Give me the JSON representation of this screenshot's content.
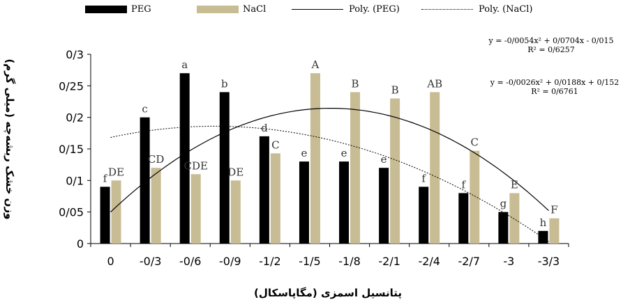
{
  "chart_data": {
    "type": "bar",
    "categories": [
      "0",
      "-0/3",
      "-0/6",
      "-0/9",
      "-1/2",
      "-1/5",
      "-1/8",
      "-2/1",
      "-2/4",
      "-2/7",
      "-3",
      "-3/3"
    ],
    "series": [
      {
        "name": "PEG",
        "color": "#000000",
        "values": [
          0.09,
          0.2,
          0.27,
          0.24,
          0.17,
          0.13,
          0.13,
          0.12,
          0.09,
          0.08,
          0.05,
          0.02
        ],
        "letters": [
          "f",
          "c",
          "a",
          "b",
          "d",
          "e",
          "e",
          "e",
          "f",
          "f",
          "g",
          "h"
        ]
      },
      {
        "name": "NaCl",
        "color": "#c8bc94",
        "values": [
          0.1,
          0.12,
          0.11,
          0.1,
          0.143,
          0.27,
          0.24,
          0.23,
          0.24,
          0.147,
          0.08,
          0.04
        ],
        "letters": [
          "DE",
          "CD",
          "CDE",
          "DE",
          "C",
          "A",
          "B",
          "B",
          "AB",
          "C",
          "E",
          "F"
        ]
      }
    ],
    "trendlines": [
      {
        "name": "Poly. (PEG)",
        "style": "solid",
        "equation": "y = -0/0054x² + 0/0704x - 0/015",
        "r2": "R² = 0/6257",
        "coefficients": [
          -0.0054,
          0.0704,
          -0.015
        ]
      },
      {
        "name": "Poly. (NaCl)",
        "style": "dotted",
        "equation": "y = -0/0026x² + 0/0188x + 0/152",
        "r2": "R² = 0/6761",
        "coefficients": [
          -0.0026,
          0.0188,
          0.152
        ]
      }
    ],
    "ylim": [
      0,
      0.3
    ],
    "yticks": [
      0,
      0.05,
      0.1,
      0.15,
      0.2,
      0.25,
      0.3
    ],
    "ytick_labels": [
      "0",
      "0/05",
      "0/1",
      "0/15",
      "0/2",
      "0/25",
      "0/3"
    ],
    "ylabel": "وزن خشک ریشه‌چه (میلی گرم)",
    "xlabel": "پتانسیل اسمزی (مگاپاسکال)",
    "grid": false,
    "legend_position": "top"
  }
}
